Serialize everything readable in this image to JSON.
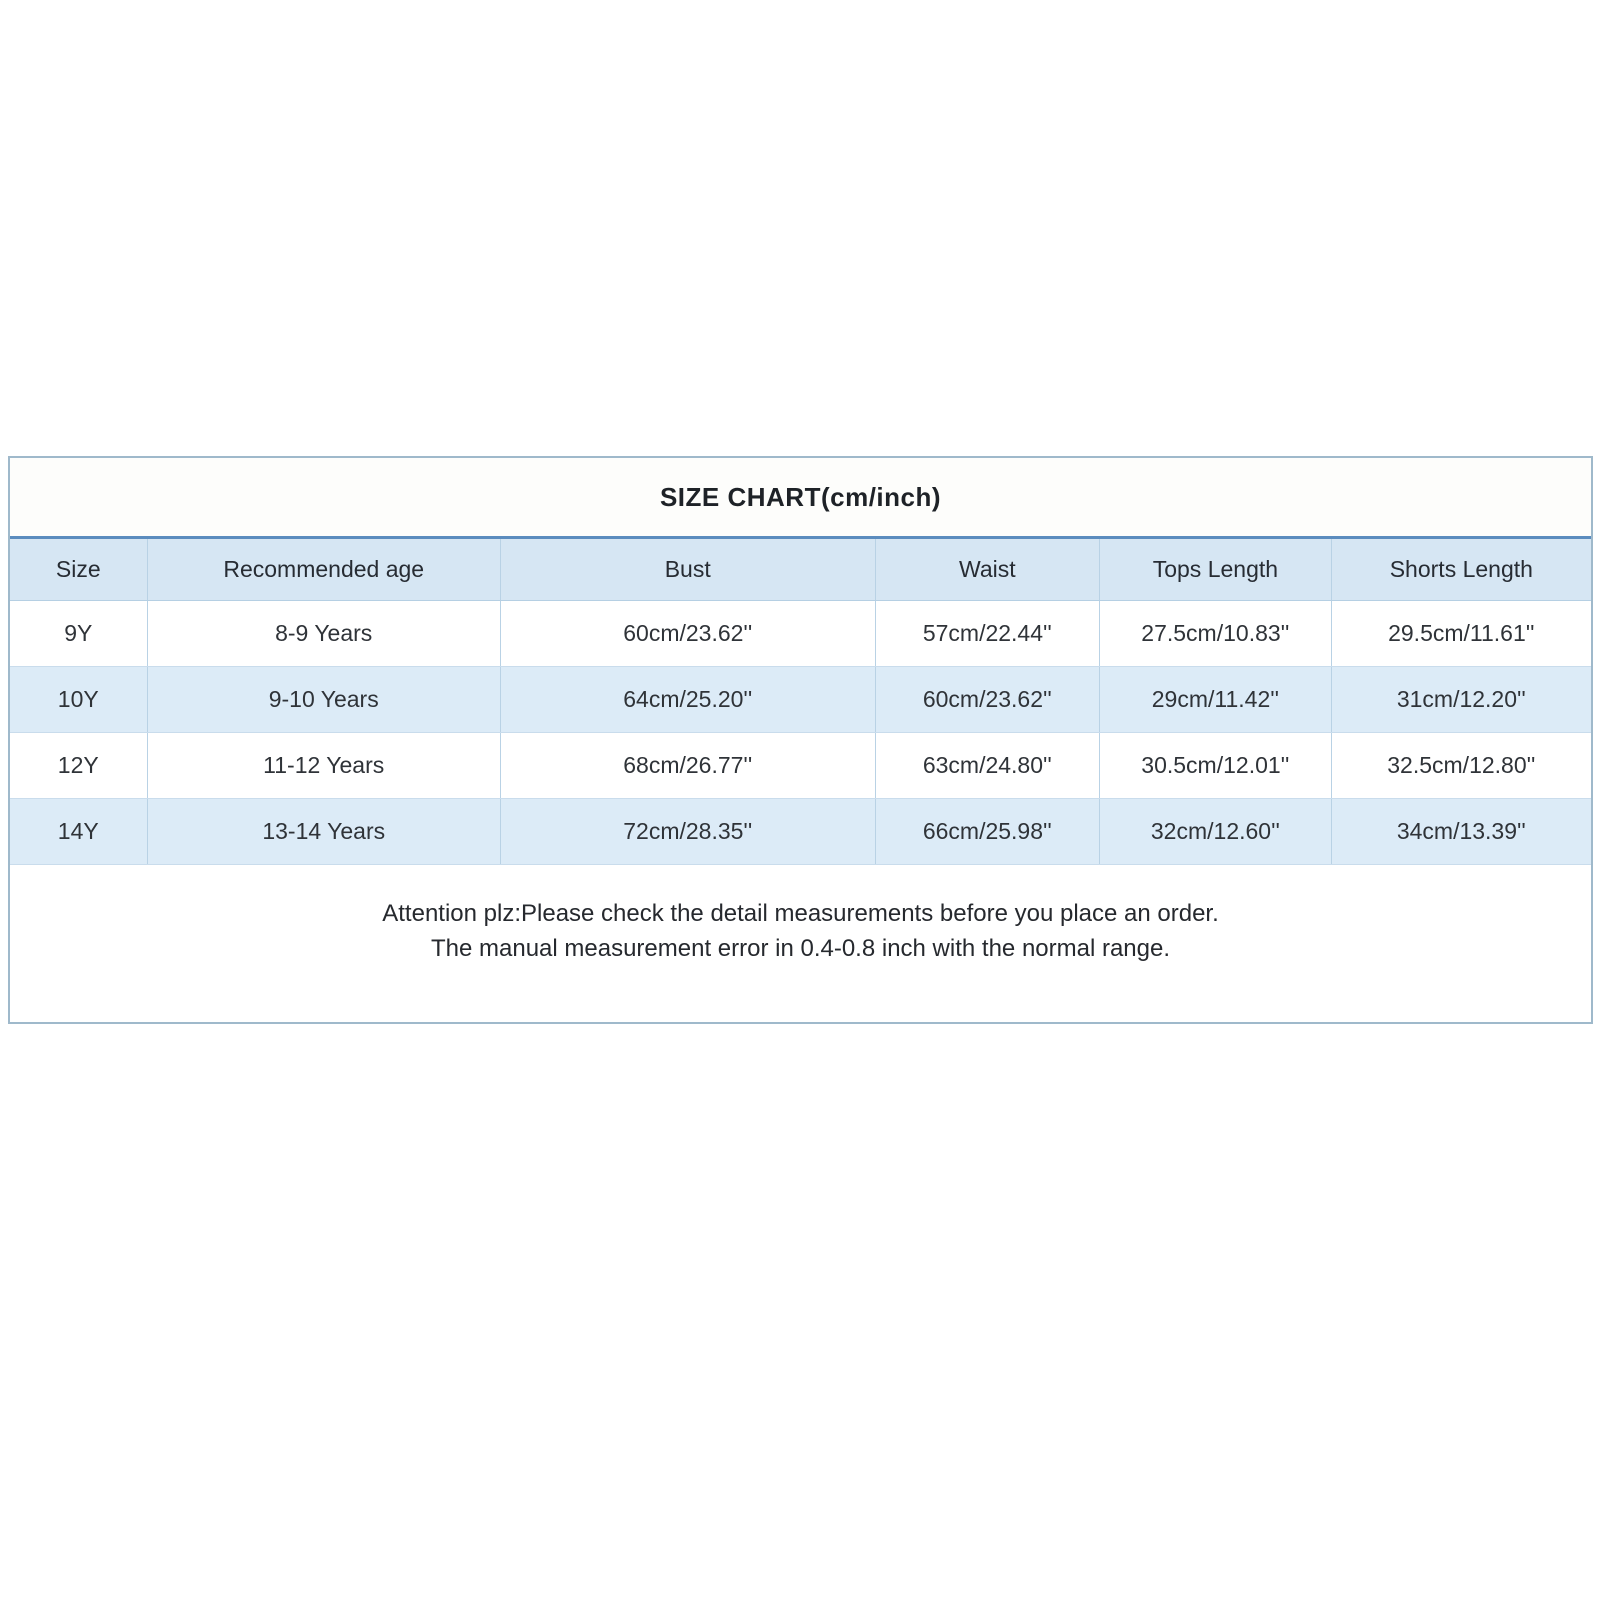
{
  "table": {
    "title": "SIZE CHART(cm/inch)",
    "headers": [
      "Size",
      "Recommended age",
      "Bust",
      "Waist",
      "Tops Length",
      "Shorts Length"
    ],
    "rows": [
      [
        "9Y",
        "8-9 Years",
        "60cm/23.62''",
        "57cm/22.44''",
        "27.5cm/10.83''",
        "29.5cm/11.61''"
      ],
      [
        "10Y",
        "9-10 Years",
        "64cm/25.20''",
        "60cm/23.62''",
        "29cm/11.42''",
        "31cm/12.20''"
      ],
      [
        "12Y",
        "11-12 Years",
        "68cm/26.77''",
        "63cm/24.80''",
        "30.5cm/12.01''",
        "32.5cm/12.80''"
      ],
      [
        "14Y",
        "13-14 Years",
        "72cm/28.35''",
        "66cm/25.98''",
        "32cm/12.60''",
        "34cm/13.39''"
      ]
    ],
    "note_line1": "Attention plz:Please check the detail measurements before you place an order.",
    "note_line2": "The manual measurement error in 0.4-0.8 inch with the normal range.",
    "colors": {
      "header_bg": "#d6e6f3",
      "alt_row_bg": "#dcebf7",
      "accent_line": "#5b8cbe",
      "cell_border": "#b9d2e5",
      "outer_border": "#9fb9cb",
      "text": "#2f3338"
    }
  }
}
